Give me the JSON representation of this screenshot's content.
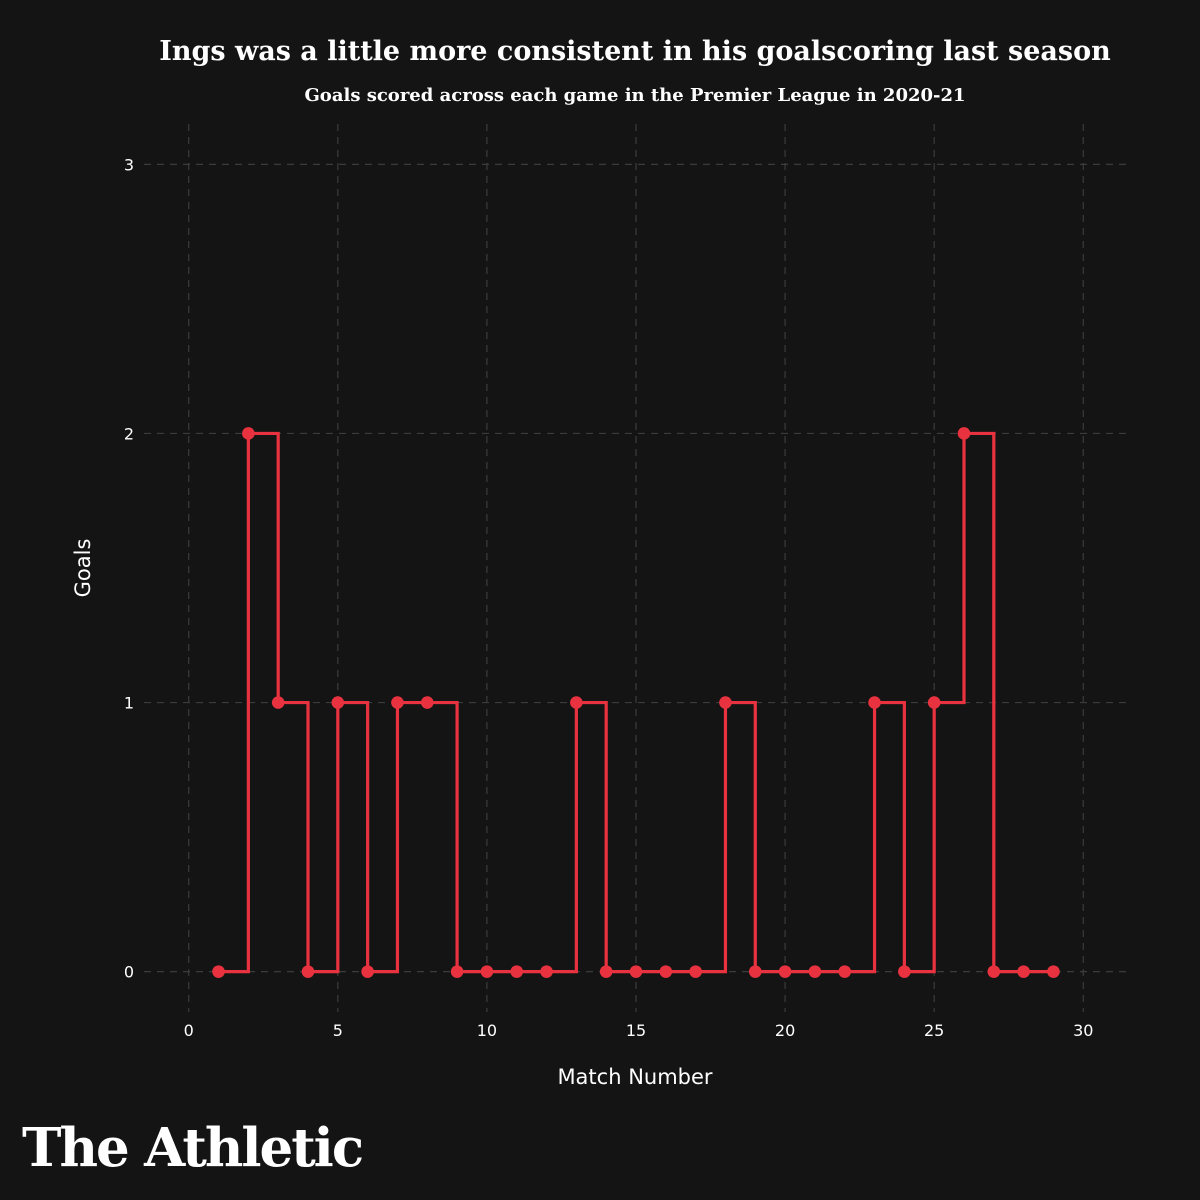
{
  "brand": {
    "logo_text": "The Athletic"
  },
  "colors": {
    "background": "#141414",
    "series": "#e8323f",
    "text": "#ffffff",
    "grid": "#3c3c3c"
  },
  "chart_data": {
    "type": "line",
    "step": "post",
    "title": "Ings was a little more consistent in his goalscoring last season",
    "subtitle": "Goals scored across each game in the Premier League in 2020-21",
    "xlabel": "Match Number",
    "ylabel": "Goals",
    "xlim": [
      -1.5,
      31.5
    ],
    "ylim": [
      -0.15,
      3.15
    ],
    "x_ticks": [
      0,
      5,
      10,
      15,
      20,
      25,
      30
    ],
    "y_ticks": [
      0,
      1,
      2,
      3
    ],
    "grid": true,
    "x": [
      1,
      2,
      3,
      4,
      5,
      6,
      7,
      8,
      9,
      10,
      11,
      12,
      13,
      14,
      15,
      16,
      17,
      18,
      19,
      20,
      21,
      22,
      23,
      24,
      25,
      26,
      27,
      28,
      29
    ],
    "series": [
      {
        "values": [
          0,
          2,
          1,
          0,
          1,
          0,
          1,
          1,
          0,
          0,
          0,
          0,
          1,
          0,
          0,
          0,
          0,
          1,
          0,
          0,
          0,
          0,
          1,
          0,
          1,
          2,
          0,
          0,
          0
        ]
      }
    ]
  }
}
